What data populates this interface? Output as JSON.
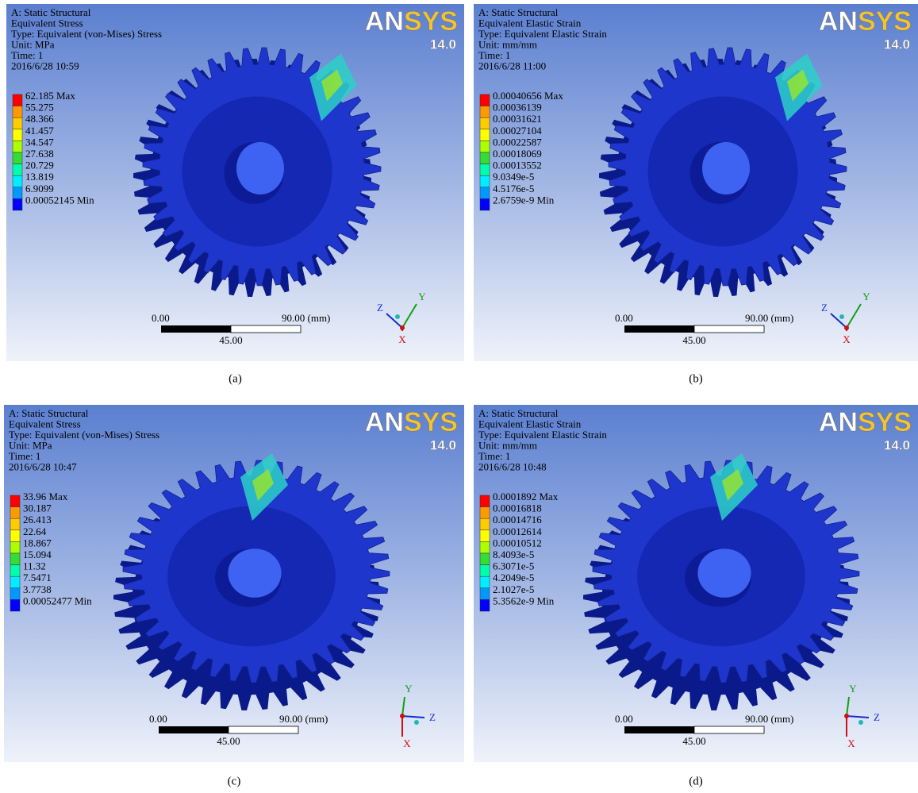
{
  "panels": [
    {
      "header": [
        "A: Static Structural",
        "Equivalent Stress",
        "Type: Equivalent (von-Mises) Stress",
        "Unit: MPa",
        "Time: 1",
        "2016/6/28 10:59"
      ],
      "legend": [
        "62.185 Max",
        "55.275",
        "48.366",
        "41.457",
        "34.547",
        "27.638",
        "20.729",
        "13.819",
        "6.9099",
        "0.00052145 Min"
      ],
      "logo": [
        "AN",
        "SYS"
      ],
      "version": "14.0",
      "scale": {
        "start": "0.00",
        "end": "90.00 (mm)",
        "mid": "45.00"
      },
      "triad": {
        "x": "X",
        "y": "Y",
        "z": "Z"
      },
      "caption": "(a)"
    },
    {
      "header": [
        "A: Static Structural",
        "Equivalent Elastic Strain",
        "Type: Equivalent Elastic Strain",
        "Unit: mm/mm",
        "Time: 1",
        "2016/6/28 11:00"
      ],
      "legend": [
        "0.00040656 Max",
        "0.00036139",
        "0.00031621",
        "0.00027104",
        "0.00022587",
        "0.00018069",
        "0.00013552",
        "9.0349e-5",
        "4.5176e-5",
        "2.6759e-9 Min"
      ],
      "logo": [
        "AN",
        "SYS"
      ],
      "version": "14.0",
      "scale": {
        "start": "0.00",
        "end": "90.00 (mm)",
        "mid": "45.00"
      },
      "triad": {
        "x": "X",
        "y": "Y",
        "z": "Z"
      },
      "caption": "(b)"
    },
    {
      "header": [
        "A: Static Structural",
        "Equivalent Stress",
        "Type: Equivalent (von-Mises) Stress",
        "Unit: MPa",
        "Time: 1",
        "2016/6/28 10:47"
      ],
      "legend": [
        "33.96 Max",
        "30.187",
        "26.413",
        "22.64",
        "18.867",
        "15.094",
        "11.32",
        "7.5471",
        "3.7738",
        "0.00052477 Min"
      ],
      "logo": [
        "AN",
        "SYS"
      ],
      "version": "14.0",
      "scale": {
        "start": "0.00",
        "end": "90.00 (mm)",
        "mid": "45.00"
      },
      "triad": {
        "x": "X",
        "y": "Y",
        "z": "Z"
      },
      "caption": "(c)"
    },
    {
      "header": [
        "A: Static Structural",
        "Equivalent Elastic Strain",
        "Type: Equivalent Elastic Strain",
        "Unit: mm/mm",
        "Time: 1",
        "2016/6/28 10:48"
      ],
      "legend": [
        "0.0001892 Max",
        "0.00016818",
        "0.00014716",
        "0.00012614",
        "0.00010512",
        "8.4093e-5",
        "6.3071e-5",
        "4.2049e-5",
        "2.1027e-5",
        "5.3562e-9 Min"
      ],
      "logo": [
        "AN",
        "SYS"
      ],
      "version": "14.0",
      "scale": {
        "start": "0.00",
        "end": "90.00 (mm)",
        "mid": "45.00"
      },
      "triad": {
        "x": "X",
        "y": "Y",
        "z": "Z"
      },
      "caption": "(d)"
    }
  ]
}
